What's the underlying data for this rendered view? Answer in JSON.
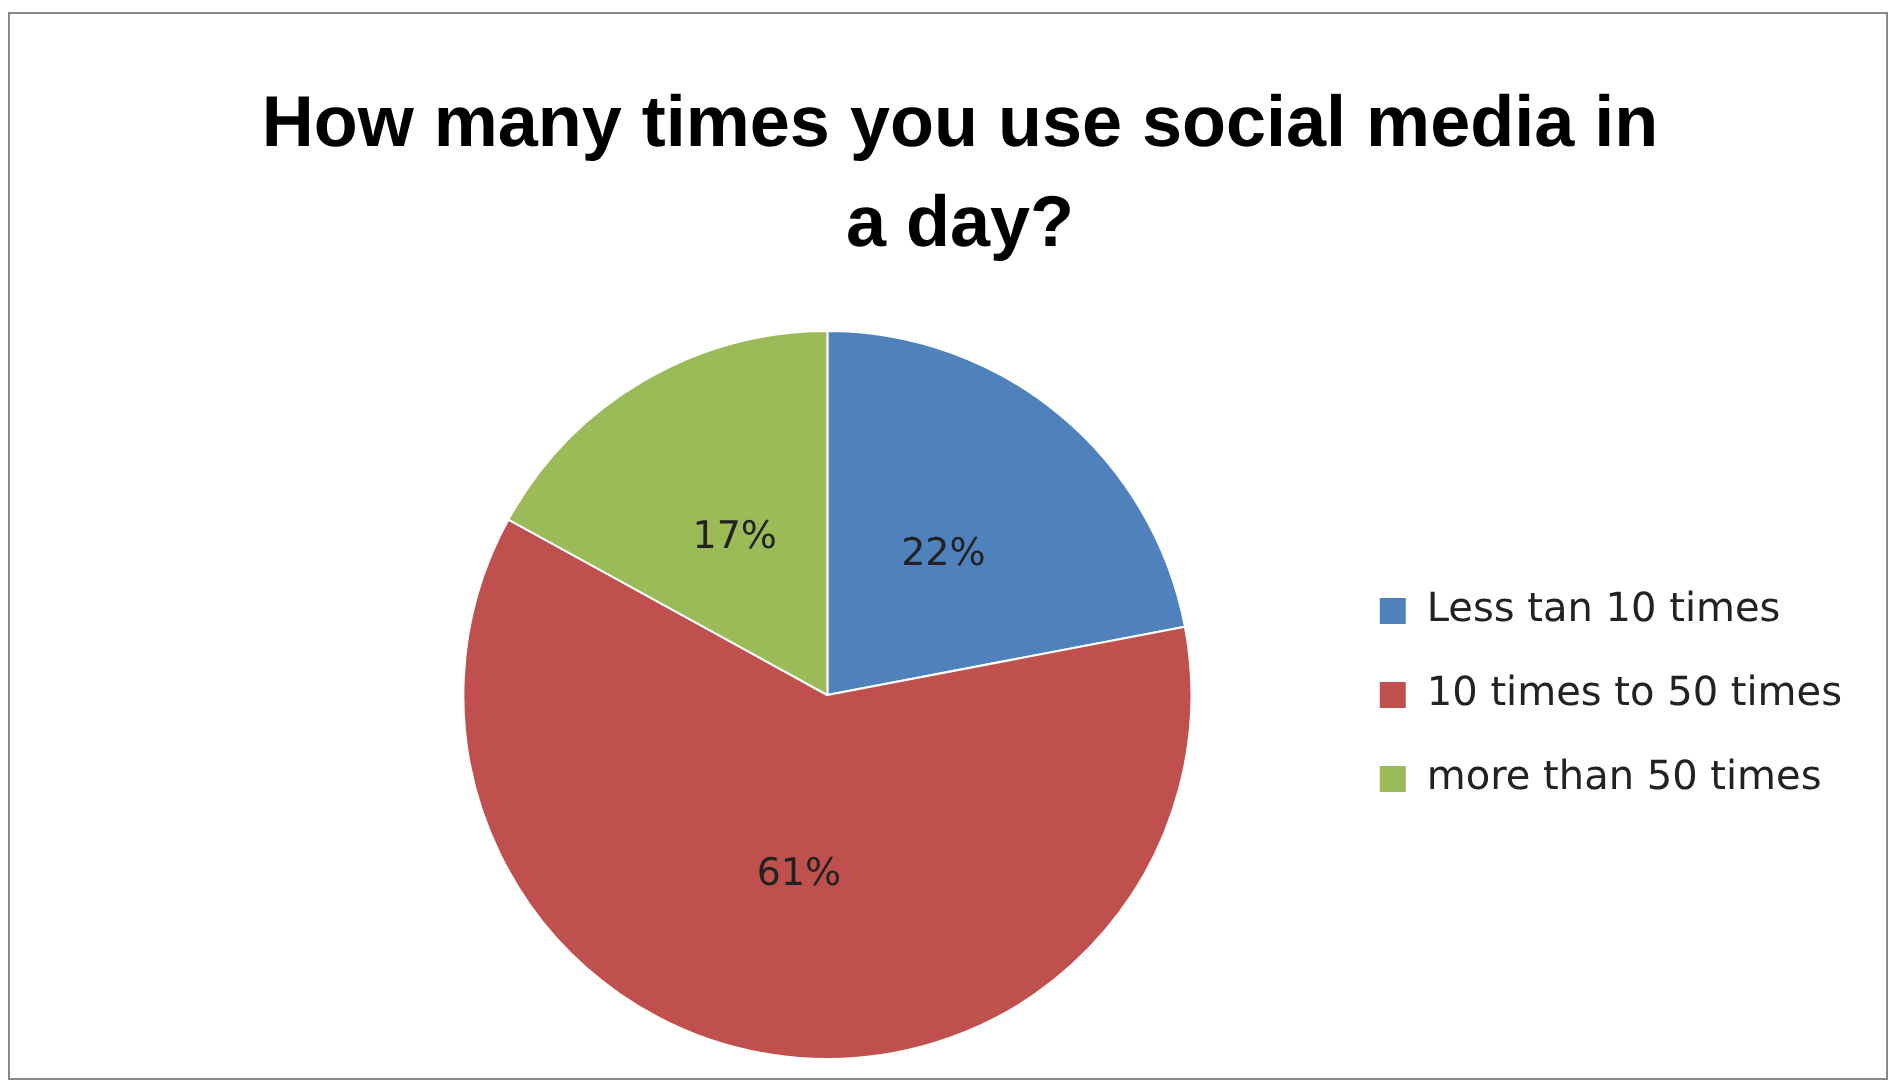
{
  "chart_data": {
    "type": "pie",
    "title": "How many times you use social media in a day?",
    "categories": [
      "Less tan 10 times",
      "10 times to 50 times",
      "more than 50 times"
    ],
    "values": [
      22,
      61,
      17
    ],
    "colors": [
      "#4f81bd",
      "#c0504d",
      "#9bbb59"
    ],
    "value_labels": [
      "22%",
      "61%",
      "17%"
    ],
    "legend": "right"
  }
}
